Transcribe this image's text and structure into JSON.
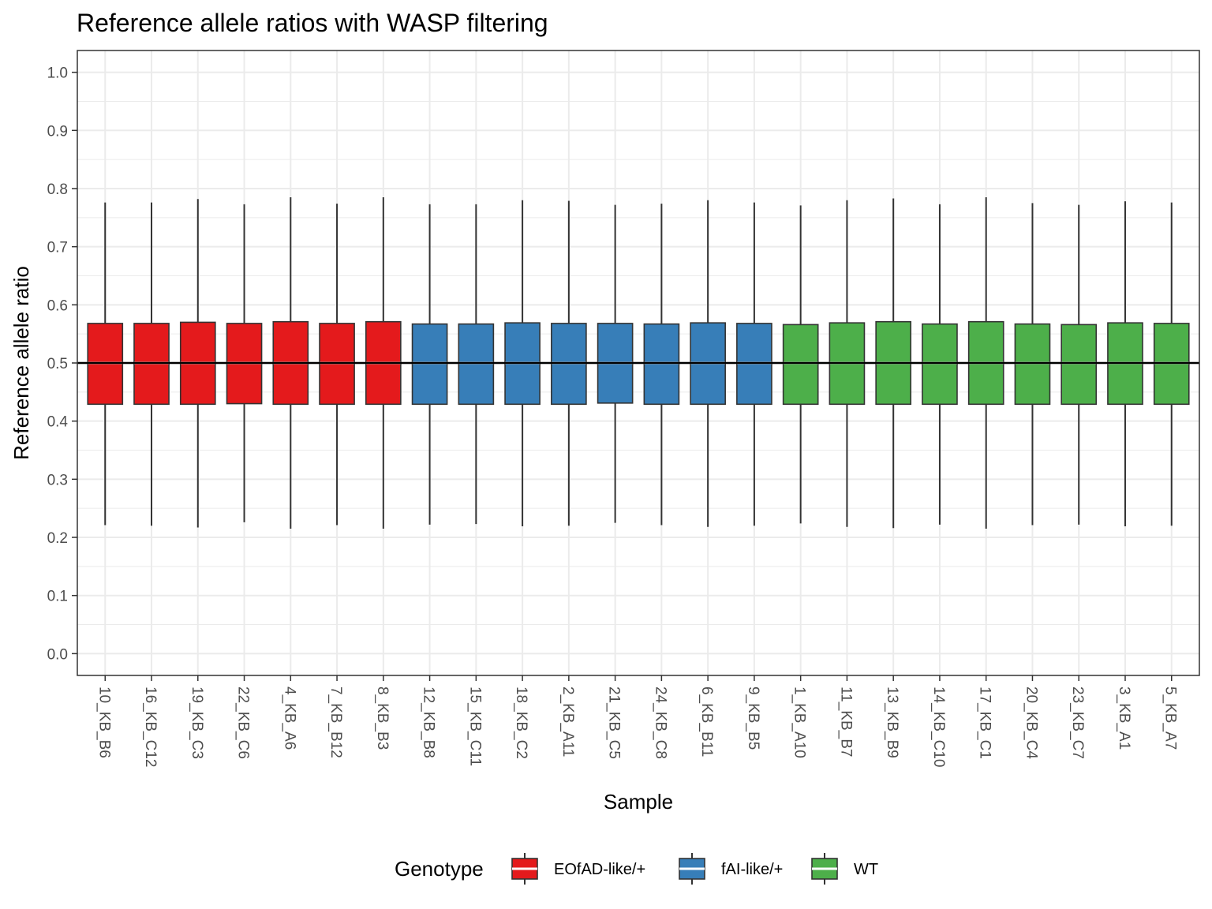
{
  "chart_data": {
    "type": "boxplot",
    "title": "Reference allele ratios with WASP filtering",
    "xlabel": "Sample",
    "ylabel": "Reference allele ratio",
    "ylim": [
      -0.0375,
      1.0375
    ],
    "y_ticks": [
      "0.0",
      "0.1",
      "0.2",
      "0.3",
      "0.4",
      "0.5",
      "0.6",
      "0.7",
      "0.8",
      "0.9",
      "1.0"
    ],
    "y_tick_values": [
      0,
      0.1,
      0.2,
      0.3,
      0.4,
      0.5,
      0.6,
      0.7,
      0.8,
      0.9,
      1.0
    ],
    "reference_line": 0.5,
    "grid": true,
    "legend": {
      "title": "Genotype",
      "placement": "bottom",
      "entries": [
        {
          "label": "EOfAD-like/+",
          "color": "#E41A1C"
        },
        {
          "label": "fAI-like/+",
          "color": "#377EB8"
        },
        {
          "label": "WT",
          "color": "#4DAF4A"
        }
      ]
    },
    "categories": [
      "10_KB_B6",
      "16_KB_C12",
      "19_KB_C3",
      "22_KB_C6",
      "4_KB_A6",
      "7_KB_B12",
      "8_KB_B3",
      "12_KB_B8",
      "15_KB_C11",
      "18_KB_C2",
      "2_KB_A11",
      "21_KB_C5",
      "24_KB_C8",
      "6_KB_B11",
      "9_KB_B5",
      "1_KB_A10",
      "11_KB_B7",
      "13_KB_B9",
      "14_KB_C10",
      "17_KB_C1",
      "20_KB_C4",
      "23_KB_C7",
      "3_KB_A1",
      "5_KB_A7"
    ],
    "series": [
      {
        "sample": "10_KB_B6",
        "genotype": "EOfAD-like/+",
        "lower_whisker": 0.221,
        "q1": 0.429,
        "median": 0.5,
        "q3": 0.568,
        "upper_whisker": 0.776
      },
      {
        "sample": "16_KB_C12",
        "genotype": "EOfAD-like/+",
        "lower_whisker": 0.22,
        "q1": 0.429,
        "median": 0.5,
        "q3": 0.568,
        "upper_whisker": 0.776
      },
      {
        "sample": "19_KB_C3",
        "genotype": "EOfAD-like/+",
        "lower_whisker": 0.217,
        "q1": 0.429,
        "median": 0.5,
        "q3": 0.57,
        "upper_whisker": 0.782
      },
      {
        "sample": "22_KB_C6",
        "genotype": "EOfAD-like/+",
        "lower_whisker": 0.226,
        "q1": 0.43,
        "median": 0.5,
        "q3": 0.568,
        "upper_whisker": 0.773
      },
      {
        "sample": "4_KB_A6",
        "genotype": "EOfAD-like/+",
        "lower_whisker": 0.215,
        "q1": 0.429,
        "median": 0.5,
        "q3": 0.571,
        "upper_whisker": 0.785
      },
      {
        "sample": "7_KB_B12",
        "genotype": "EOfAD-like/+",
        "lower_whisker": 0.221,
        "q1": 0.429,
        "median": 0.5,
        "q3": 0.568,
        "upper_whisker": 0.774
      },
      {
        "sample": "8_KB_B3",
        "genotype": "EOfAD-like/+",
        "lower_whisker": 0.215,
        "q1": 0.429,
        "median": 0.5,
        "q3": 0.571,
        "upper_whisker": 0.785
      },
      {
        "sample": "12_KB_B8",
        "genotype": "fAI-like/+",
        "lower_whisker": 0.222,
        "q1": 0.429,
        "median": 0.5,
        "q3": 0.567,
        "upper_whisker": 0.773
      },
      {
        "sample": "15_KB_C11",
        "genotype": "fAI-like/+",
        "lower_whisker": 0.223,
        "q1": 0.429,
        "median": 0.5,
        "q3": 0.567,
        "upper_whisker": 0.773
      },
      {
        "sample": "18_KB_C2",
        "genotype": "fAI-like/+",
        "lower_whisker": 0.219,
        "q1": 0.429,
        "median": 0.5,
        "q3": 0.569,
        "upper_whisker": 0.78
      },
      {
        "sample": "2_KB_A11",
        "genotype": "fAI-like/+",
        "lower_whisker": 0.22,
        "q1": 0.429,
        "median": 0.5,
        "q3": 0.568,
        "upper_whisker": 0.779
      },
      {
        "sample": "21_KB_C5",
        "genotype": "fAI-like/+",
        "lower_whisker": 0.225,
        "q1": 0.431,
        "median": 0.5,
        "q3": 0.568,
        "upper_whisker": 0.772
      },
      {
        "sample": "24_KB_C8",
        "genotype": "fAI-like/+",
        "lower_whisker": 0.221,
        "q1": 0.429,
        "median": 0.5,
        "q3": 0.567,
        "upper_whisker": 0.774
      },
      {
        "sample": "6_KB_B11",
        "genotype": "fAI-like/+",
        "lower_whisker": 0.218,
        "q1": 0.429,
        "median": 0.5,
        "q3": 0.569,
        "upper_whisker": 0.78
      },
      {
        "sample": "9_KB_B5",
        "genotype": "fAI-like/+",
        "lower_whisker": 0.22,
        "q1": 0.429,
        "median": 0.5,
        "q3": 0.568,
        "upper_whisker": 0.776
      },
      {
        "sample": "1_KB_A10",
        "genotype": "WT",
        "lower_whisker": 0.224,
        "q1": 0.429,
        "median": 0.5,
        "q3": 0.566,
        "upper_whisker": 0.771
      },
      {
        "sample": "11_KB_B7",
        "genotype": "WT",
        "lower_whisker": 0.218,
        "q1": 0.429,
        "median": 0.5,
        "q3": 0.569,
        "upper_whisker": 0.78
      },
      {
        "sample": "13_KB_B9",
        "genotype": "WT",
        "lower_whisker": 0.216,
        "q1": 0.429,
        "median": 0.5,
        "q3": 0.571,
        "upper_whisker": 0.783
      },
      {
        "sample": "14_KB_C10",
        "genotype": "WT",
        "lower_whisker": 0.222,
        "q1": 0.429,
        "median": 0.5,
        "q3": 0.567,
        "upper_whisker": 0.773
      },
      {
        "sample": "17_KB_C1",
        "genotype": "WT",
        "lower_whisker": 0.215,
        "q1": 0.429,
        "median": 0.5,
        "q3": 0.571,
        "upper_whisker": 0.785
      },
      {
        "sample": "20_KB_C4",
        "genotype": "WT",
        "lower_whisker": 0.221,
        "q1": 0.429,
        "median": 0.5,
        "q3": 0.567,
        "upper_whisker": 0.775
      },
      {
        "sample": "23_KB_C7",
        "genotype": "WT",
        "lower_whisker": 0.222,
        "q1": 0.429,
        "median": 0.5,
        "q3": 0.566,
        "upper_whisker": 0.772
      },
      {
        "sample": "3_KB_A1",
        "genotype": "WT",
        "lower_whisker": 0.219,
        "q1": 0.429,
        "median": 0.5,
        "q3": 0.569,
        "upper_whisker": 0.778
      },
      {
        "sample": "5_KB_A7",
        "genotype": "WT",
        "lower_whisker": 0.22,
        "q1": 0.429,
        "median": 0.5,
        "q3": 0.568,
        "upper_whisker": 0.776
      }
    ]
  }
}
